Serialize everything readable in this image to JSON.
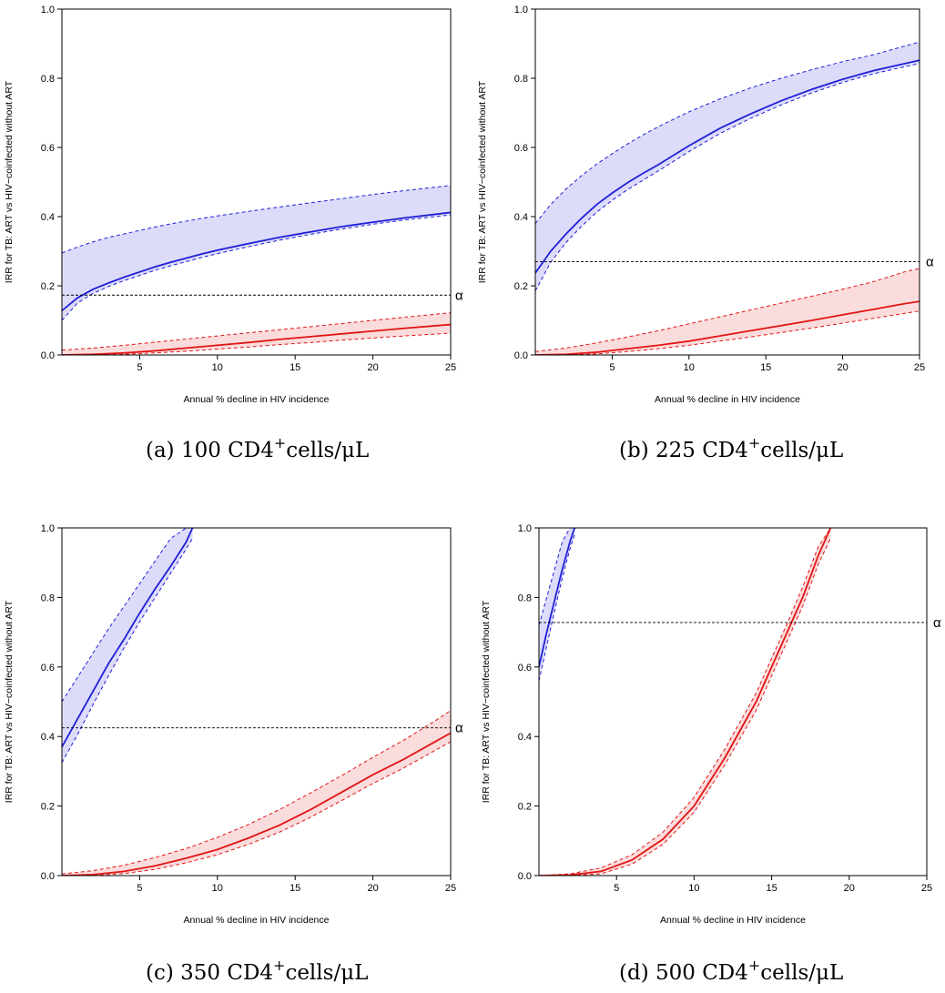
{
  "figure": {
    "colors": {
      "blue_line": "#1f1fd6",
      "blue_fill": "#dcdcfa",
      "red_line": "#e01515",
      "red_fill": "#fbdcdc",
      "ref_line": "#000000"
    }
  },
  "chart_data": [
    {
      "type": "line",
      "caption_prefix": "(a) 100 CD4",
      "caption_sup": "+",
      "caption_suffix": "cells/μL",
      "xlabel": "Annual % decline in HIV incidence",
      "ylabel": "IRR for TB: ART vs HIV−coinfected without ART",
      "xlim": [
        0,
        25
      ],
      "ylim": [
        0,
        1
      ],
      "xticks": [
        5,
        10,
        15,
        20,
        25
      ],
      "yticks": [
        0.0,
        0.2,
        0.4,
        0.6,
        0.8,
        1.0
      ],
      "ytick_labels": [
        "0.0",
        "0.2",
        "0.4",
        "0.6",
        "0.8",
        "1.0"
      ],
      "alpha_label": "α",
      "alpha_value": 0.173,
      "series": [
        {
          "color_key": "blue",
          "x": [
            0,
            1,
            2,
            3,
            4,
            5,
            6,
            7,
            8,
            9,
            10,
            12,
            14,
            16,
            18,
            20,
            22,
            25
          ],
          "mid": [
            0.128,
            0.165,
            0.19,
            0.208,
            0.225,
            0.24,
            0.255,
            0.268,
            0.28,
            0.292,
            0.303,
            0.322,
            0.34,
            0.356,
            0.371,
            0.384,
            0.396,
            0.412
          ],
          "lower": [
            0.1,
            0.15,
            0.178,
            0.198,
            0.215,
            0.23,
            0.245,
            0.258,
            0.27,
            0.282,
            0.293,
            0.313,
            0.332,
            0.349,
            0.364,
            0.378,
            0.39,
            0.405
          ],
          "upper": [
            0.295,
            0.312,
            0.327,
            0.34,
            0.35,
            0.36,
            0.37,
            0.379,
            0.387,
            0.395,
            0.402,
            0.415,
            0.428,
            0.44,
            0.452,
            0.464,
            0.475,
            0.49
          ]
        },
        {
          "color_key": "red",
          "x": [
            0,
            2,
            4,
            6,
            8,
            10,
            12,
            14,
            16,
            18,
            20,
            22,
            25
          ],
          "mid": [
            0.0,
            0.002,
            0.006,
            0.012,
            0.02,
            0.028,
            0.036,
            0.045,
            0.053,
            0.061,
            0.069,
            0.077,
            0.088
          ],
          "lower": [
            0.0,
            0.0,
            0.002,
            0.006,
            0.011,
            0.017,
            0.023,
            0.03,
            0.036,
            0.043,
            0.049,
            0.055,
            0.063
          ],
          "upper": [
            0.014,
            0.02,
            0.028,
            0.037,
            0.046,
            0.055,
            0.064,
            0.073,
            0.082,
            0.091,
            0.1,
            0.109,
            0.122
          ]
        }
      ]
    },
    {
      "type": "line",
      "caption_prefix": "(b) 225 CD4",
      "caption_sup": "+",
      "caption_suffix": "cells/μL",
      "xlabel": "Annual % decline in HIV incidence",
      "ylabel": "IRR for TB: ART vs HIV−coinfected without ART",
      "xlim": [
        0,
        25
      ],
      "ylim": [
        0,
        1
      ],
      "xticks": [
        5,
        10,
        15,
        20,
        25
      ],
      "yticks": [
        0.0,
        0.2,
        0.4,
        0.6,
        0.8,
        1.0
      ],
      "ytick_labels": [
        "0.0",
        "0.2",
        "0.4",
        "0.6",
        "0.8",
        "1.0"
      ],
      "alpha_label": "α",
      "alpha_value": 0.27,
      "series": [
        {
          "color_key": "blue",
          "x": [
            0,
            1,
            2,
            3,
            4,
            5,
            6,
            7,
            8,
            10,
            12,
            14,
            16,
            18,
            20,
            22,
            25
          ],
          "mid": [
            0.237,
            0.3,
            0.35,
            0.395,
            0.435,
            0.468,
            0.498,
            0.525,
            0.55,
            0.605,
            0.655,
            0.697,
            0.735,
            0.768,
            0.797,
            0.822,
            0.852
          ],
          "lower": [
            0.185,
            0.268,
            0.325,
            0.372,
            0.413,
            0.447,
            0.478,
            0.505,
            0.532,
            0.588,
            0.64,
            0.684,
            0.723,
            0.758,
            0.788,
            0.813,
            0.843
          ],
          "upper": [
            0.38,
            0.435,
            0.48,
            0.518,
            0.552,
            0.582,
            0.61,
            0.636,
            0.66,
            0.703,
            0.74,
            0.772,
            0.8,
            0.825,
            0.848,
            0.868,
            0.905
          ]
        },
        {
          "color_key": "red",
          "x": [
            0,
            2,
            4,
            6,
            8,
            10,
            12,
            14,
            16,
            18,
            20,
            22,
            24,
            25
          ],
          "mid": [
            0.0,
            0.002,
            0.008,
            0.018,
            0.028,
            0.04,
            0.055,
            0.07,
            0.085,
            0.1,
            0.116,
            0.132,
            0.148,
            0.155
          ],
          "lower": [
            0.0,
            0.0,
            0.003,
            0.01,
            0.018,
            0.028,
            0.04,
            0.052,
            0.065,
            0.078,
            0.092,
            0.106,
            0.12,
            0.127
          ],
          "upper": [
            0.01,
            0.02,
            0.035,
            0.052,
            0.07,
            0.09,
            0.11,
            0.13,
            0.15,
            0.17,
            0.19,
            0.212,
            0.24,
            0.25
          ]
        }
      ]
    },
    {
      "type": "line",
      "caption_prefix": "(c) 350 CD4",
      "caption_sup": "+",
      "caption_suffix": "cells/μL",
      "xlabel": "Annual % decline in HIV incidence",
      "ylabel": "IRR for TB: ART vs HIV−coinfected without ART",
      "xlim": [
        0,
        25
      ],
      "ylim": [
        0,
        1
      ],
      "xticks": [
        5,
        10,
        15,
        20,
        25
      ],
      "yticks": [
        0.0,
        0.2,
        0.4,
        0.6,
        0.8,
        1.0
      ],
      "ytick_labels": [
        "0.0",
        "0.2",
        "0.4",
        "0.6",
        "0.8",
        "1.0"
      ],
      "alpha_label": "α",
      "alpha_value": 0.425,
      "series": [
        {
          "color_key": "blue",
          "x": [
            0,
            1,
            2,
            3,
            4,
            5,
            6,
            7,
            8,
            8.4
          ],
          "mid": [
            0.37,
            0.45,
            0.53,
            0.61,
            0.68,
            0.755,
            0.825,
            0.89,
            0.96,
            1.0
          ],
          "lower": [
            0.325,
            0.405,
            0.492,
            0.575,
            0.655,
            0.73,
            0.8,
            0.87,
            0.94,
            0.97
          ],
          "upper": [
            0.5,
            0.57,
            0.64,
            0.71,
            0.775,
            0.84,
            0.905,
            0.97,
            1.0,
            1.0
          ]
        },
        {
          "color_key": "red",
          "x": [
            0,
            2,
            4,
            6,
            8,
            10,
            12,
            14,
            16,
            18,
            20,
            22,
            24,
            25
          ],
          "mid": [
            0.0,
            0.003,
            0.012,
            0.028,
            0.05,
            0.075,
            0.108,
            0.145,
            0.19,
            0.24,
            0.29,
            0.335,
            0.385,
            0.41
          ],
          "lower": [
            0.0,
            0.0,
            0.006,
            0.018,
            0.037,
            0.06,
            0.09,
            0.125,
            0.168,
            0.216,
            0.265,
            0.31,
            0.36,
            0.385
          ],
          "upper": [
            0.005,
            0.014,
            0.03,
            0.052,
            0.078,
            0.11,
            0.147,
            0.19,
            0.238,
            0.288,
            0.34,
            0.39,
            0.445,
            0.475
          ]
        }
      ]
    },
    {
      "type": "line",
      "caption_prefix": "(d) 500 CD4",
      "caption_sup": "+",
      "caption_suffix": "cells/μL",
      "xlabel": "Annual % decline in HIV incidence",
      "ylabel": "IRR for TB: ART vs HIV−coinfected without ART",
      "xlim": [
        0,
        25
      ],
      "ylim": [
        0,
        1
      ],
      "xticks": [
        5,
        10,
        15,
        20,
        25
      ],
      "yticks": [
        0.0,
        0.2,
        0.4,
        0.6,
        0.8,
        1.0
      ],
      "ytick_labels": [
        "0.0",
        "0.2",
        "0.4",
        "0.6",
        "0.8",
        "1.0"
      ],
      "alpha_label": "α",
      "alpha_value": 0.728,
      "series": [
        {
          "color_key": "blue",
          "x": [
            0,
            0.5,
            1,
            1.5,
            2,
            2.3
          ],
          "mid": [
            0.6,
            0.7,
            0.79,
            0.88,
            0.96,
            1.0
          ],
          "lower": [
            0.56,
            0.66,
            0.76,
            0.855,
            0.94,
            0.98
          ],
          "upper": [
            0.72,
            0.8,
            0.88,
            0.96,
            1.0,
            1.0
          ]
        },
        {
          "color_key": "red",
          "x": [
            0,
            2,
            4,
            6,
            8,
            10,
            12,
            14,
            15,
            16,
            17,
            18,
            18.8
          ],
          "mid": [
            0.0,
            0.002,
            0.012,
            0.045,
            0.105,
            0.2,
            0.34,
            0.5,
            0.6,
            0.7,
            0.8,
            0.92,
            1.0
          ],
          "lower": [
            0.0,
            0.0,
            0.005,
            0.033,
            0.09,
            0.182,
            0.32,
            0.475,
            0.575,
            0.675,
            0.775,
            0.895,
            0.97
          ],
          "upper": [
            0.0,
            0.005,
            0.022,
            0.06,
            0.125,
            0.225,
            0.365,
            0.525,
            0.625,
            0.725,
            0.83,
            0.945,
            1.0
          ]
        }
      ]
    }
  ]
}
